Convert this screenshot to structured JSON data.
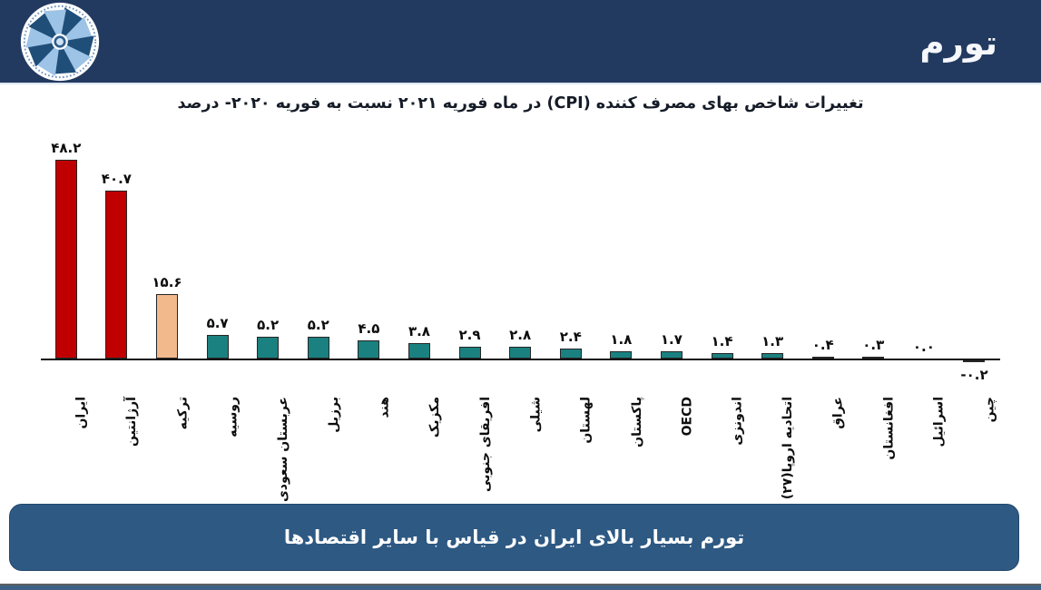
{
  "header": {
    "title": "تورم",
    "logo": "pinwheel-organization-logo",
    "bg_color": "#233A60"
  },
  "chart_data": {
    "type": "bar",
    "title": "تغییرات شاخص بهای مصرف کننده (CPI) در ماه فوریه ۲۰۲۱ نسبت به فوریه ۲۰۲۰- درصد",
    "xlabel": "",
    "ylabel": "",
    "categories": [
      "ایران",
      "آرژانتین",
      "ترکیه",
      "روسیه",
      "عربستان سعودی",
      "برزیل",
      "هند",
      "مکزیک",
      "افریقای جنوبی",
      "شیلی",
      "لهستان",
      "پاکستان",
      "OECD",
      "اندونزی",
      "اتحادیه اروپا(۲۷)",
      "عراق",
      "افغانستان",
      "اسرائیل",
      "چین"
    ],
    "values": [
      48.2,
      40.7,
      15.6,
      5.7,
      5.2,
      5.2,
      4.5,
      3.8,
      2.9,
      2.8,
      2.4,
      1.8,
      1.7,
      1.4,
      1.3,
      0.4,
      0.3,
      0.0,
      -0.2
    ],
    "value_labels": [
      "۴۸.۲",
      "۴۰.۷",
      "۱۵.۶",
      "۵.۷",
      "۵.۲",
      "۵.۲",
      "۴.۵",
      "۳.۸",
      "۲.۹",
      "۲.۸",
      "۲.۴",
      "۱.۸",
      "۱.۷",
      "۱.۴",
      "۱.۳",
      "۰.۴",
      "۰.۳",
      "۰.۰",
      "-۰.۲"
    ],
    "bar_colors": [
      "#C00000",
      "#C00000",
      "#F2B98C",
      "#1A8180",
      "#1A8180",
      "#1A8180",
      "#1A8180",
      "#1A8180",
      "#1A8180",
      "#1A8180",
      "#1A8180",
      "#1A8180",
      "#1A8180",
      "#1A8180",
      "#1A8180",
      "#1A8180",
      "#1A8180",
      "#1A8180",
      "#1A8180"
    ],
    "bar_border_color": "#262626",
    "axis_color": "#141414",
    "ylim": [
      -2,
      52
    ],
    "grid": false,
    "legend": "none",
    "value_label_position": "above-bars",
    "x_label_rotation": -90
  },
  "banner": {
    "text": "تورم بسیار بالای ایران در قیاس با سایر اقتصادها",
    "bg_color": "#2D5983"
  }
}
